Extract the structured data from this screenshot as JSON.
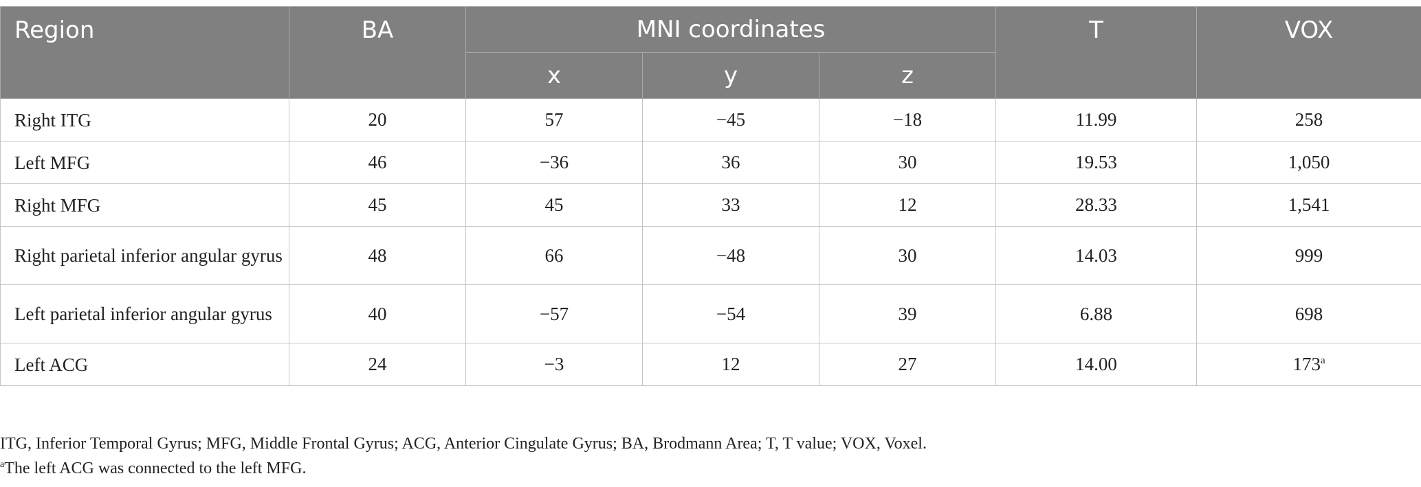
{
  "table": {
    "headers": {
      "region": "Region",
      "ba": "BA",
      "mni": "MNI coordinates",
      "x": "x",
      "y": "y",
      "z": "z",
      "t": "T",
      "vox": "VOX"
    },
    "rows": [
      {
        "region": "Right ITG",
        "ba": "20",
        "x": "57",
        "y": "−45",
        "z": "−18",
        "t": "11.99",
        "vox": "258",
        "vox_note": ""
      },
      {
        "region": "Left MFG",
        "ba": "46",
        "x": "−36",
        "y": "36",
        "z": "30",
        "t": "19.53",
        "vox": "1,050",
        "vox_note": ""
      },
      {
        "region": "Right MFG",
        "ba": "45",
        "x": "45",
        "y": "33",
        "z": "12",
        "t": "28.33",
        "vox": "1,541",
        "vox_note": ""
      },
      {
        "region": "Right parietal inferior angular gyrus",
        "ba": "48",
        "x": "66",
        "y": "−48",
        "z": "30",
        "t": "14.03",
        "vox": "999",
        "vox_note": ""
      },
      {
        "region": "Left parietal inferior angular gyrus",
        "ba": "40",
        "x": "−57",
        "y": "−54",
        "z": "39",
        "t": "6.88",
        "vox": "698",
        "vox_note": ""
      },
      {
        "region": "Left ACG",
        "ba": "24",
        "x": "−3",
        "y": "12",
        "z": "27",
        "t": "14.00",
        "vox": "173",
        "vox_note": "a"
      }
    ]
  },
  "notes": {
    "abbreviations": "ITG, Inferior Temporal Gyrus; MFG, Middle Frontal Gyrus; ACG, Anterior Cingulate Gyrus; BA, Brodmann Area; T, T value; VOX, Voxel.",
    "footnote_mark": "a",
    "footnote_text": "The left ACG was connected to the left MFG."
  }
}
